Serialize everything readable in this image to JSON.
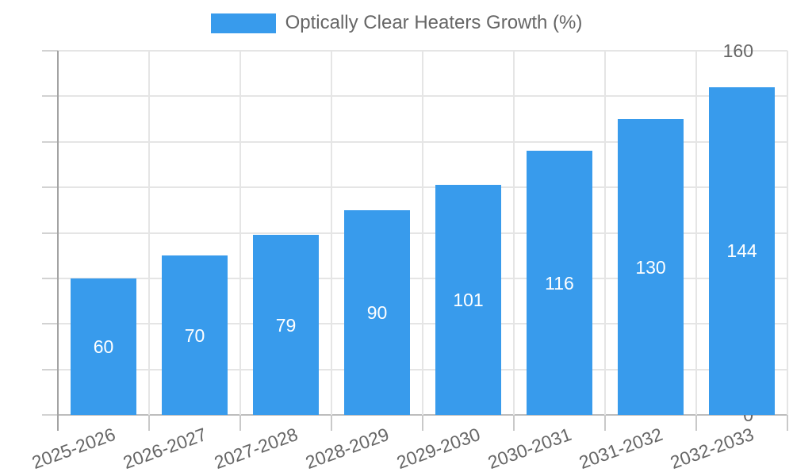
{
  "legend": {
    "label": "Optically Clear Heaters Growth (%)",
    "swatch_color": "#389bec"
  },
  "chart_data": {
    "type": "bar",
    "title": "",
    "xlabel": "",
    "ylabel": "",
    "categories": [
      "2025-2026",
      "2026-2027",
      "2027-2028",
      "2028-2029",
      "2029-2030",
      "2030-2031",
      "2031-2032",
      "2032-2033"
    ],
    "series": [
      {
        "name": "Optically Clear Heaters Growth (%)",
        "values": [
          60,
          70,
          79,
          90,
          101,
          116,
          130,
          144
        ]
      }
    ],
    "bar_labels": [
      "60",
      "70",
      "79",
      "90",
      "101",
      "116",
      "130",
      "144"
    ],
    "ylim": [
      0,
      160
    ],
    "ytick_step": 20,
    "yticks": [
      "0",
      "20",
      "40",
      "60",
      "80",
      "100",
      "120",
      "140",
      "160"
    ],
    "grid": true,
    "legend_position": "top",
    "bar_color": "#389bec",
    "bar_label_color": "#ffffff",
    "axis_text_color": "#666666",
    "gridline_color": "#e5e5e5"
  }
}
